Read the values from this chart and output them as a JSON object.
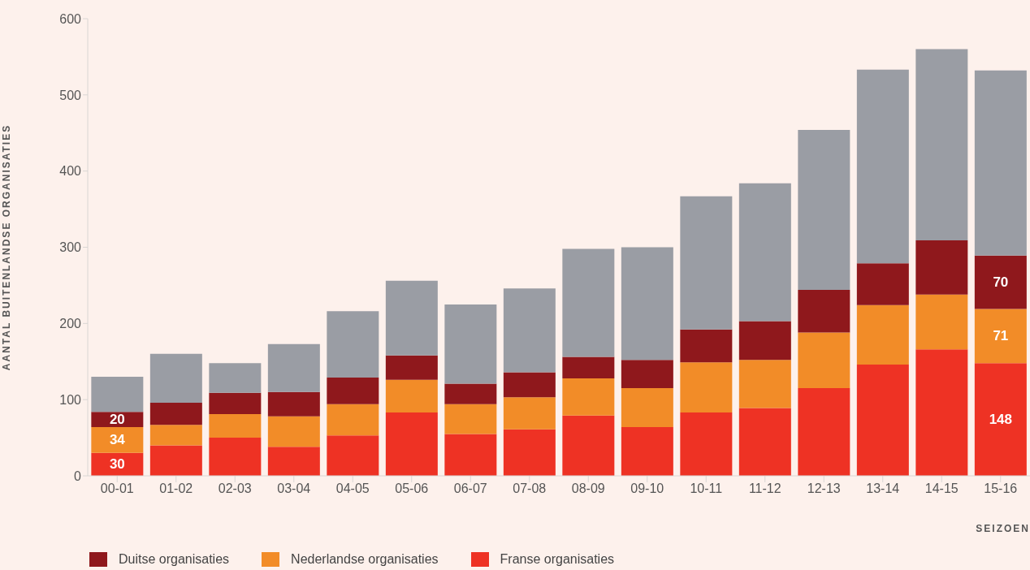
{
  "chart_data": {
    "type": "bar",
    "stacked": true,
    "ylabel": "AANTAL BUITENLANDSE ORGANISATIES",
    "xlabel": "SEIZOEN",
    "categories": [
      "00-01",
      "01-02",
      "02-03",
      "03-04",
      "04-05",
      "05-06",
      "06-07",
      "07-08",
      "08-09",
      "09-10",
      "10-11",
      "11-12",
      "12-13",
      "13-14",
      "14-15",
      "15-16"
    ],
    "series": [
      {
        "name": "Franse organisaties",
        "color": "#ee3224",
        "values": [
          30,
          40,
          50,
          38,
          53,
          83,
          55,
          61,
          79,
          64,
          83,
          89,
          115,
          146,
          166,
          148
        ],
        "value_labels": [
          "30",
          null,
          null,
          null,
          null,
          null,
          null,
          null,
          null,
          null,
          null,
          null,
          null,
          null,
          null,
          "148"
        ]
      },
      {
        "name": "Nederlandse organisaties",
        "color": "#f28c28",
        "values": [
          34,
          27,
          31,
          40,
          41,
          43,
          39,
          42,
          49,
          51,
          66,
          63,
          73,
          78,
          72,
          71
        ],
        "value_labels": [
          "34",
          null,
          null,
          null,
          null,
          null,
          null,
          null,
          null,
          null,
          null,
          null,
          null,
          null,
          null,
          "71"
        ]
      },
      {
        "name": "Duitse organisaties",
        "color": "#8f181c",
        "values": [
          20,
          29,
          28,
          32,
          35,
          32,
          27,
          33,
          28,
          37,
          43,
          51,
          56,
          55,
          71,
          70
        ],
        "value_labels": [
          "20",
          null,
          null,
          null,
          null,
          null,
          null,
          null,
          null,
          null,
          null,
          null,
          null,
          null,
          null,
          "70"
        ]
      },
      {
        "color": "#9a9da4",
        "values": [
          46,
          64,
          39,
          63,
          87,
          98,
          104,
          110,
          142,
          148,
          175,
          181,
          210,
          254,
          251,
          243
        ]
      }
    ],
    "ylim": [
      0,
      600
    ],
    "yticks": [
      0,
      100,
      200,
      300,
      400,
      500,
      600
    ],
    "legend": "bottom left"
  }
}
